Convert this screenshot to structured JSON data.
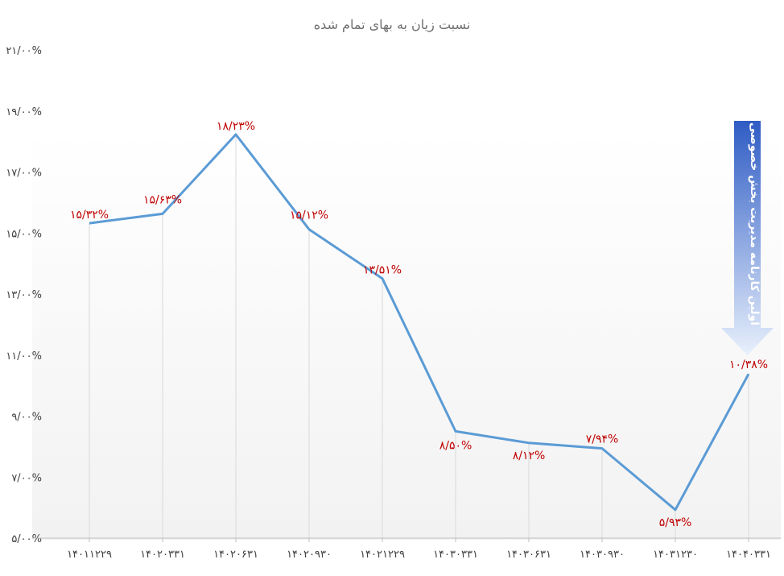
{
  "chart_data": {
    "type": "line",
    "title": "نسبت زیان به بهای تمام شده",
    "categories": [
      "۱۴۰۱۱۲۲۹",
      "۱۴۰۲۰۳۳۱",
      "۱۴۰۲۰۶۳۱",
      "۱۴۰۲۰۹۳۰",
      "۱۴۰۲۱۲۲۹",
      "۱۴۰۳۰۳۳۱",
      "۱۴۰۳۰۶۳۱",
      "۱۴۰۳۰۹۳۰",
      "۱۴۰۳۱۲۳۰",
      "۱۴۰۴۰۳۳۱"
    ],
    "values": [
      15.32,
      15.63,
      18.23,
      15.12,
      13.51,
      8.5,
      8.12,
      7.94,
      5.93,
      10.38
    ],
    "data_labels": [
      "۱۵/۳۲%",
      "۱۵/۶۳%",
      "۱۸/۲۳%",
      "۱۵/۱۲%",
      "۱۳/۵۱%",
      "۸/۵۰%",
      "۸/۱۲%",
      "۷/۹۴%",
      "۵/۹۳%",
      "۱۰/۳۸%"
    ],
    "y_ticks": [
      5,
      7,
      9,
      11,
      13,
      15,
      17,
      19,
      21
    ],
    "y_tick_labels": [
      "۵/۰۰%",
      "۷/۰۰%",
      "۹/۰۰%",
      "۱۱/۰۰%",
      "۱۳/۰۰%",
      "۱۵/۰۰%",
      "۱۷/۰۰%",
      "۱۹/۰۰%",
      "۲۱/۰۰%"
    ],
    "ylim": [
      5,
      21
    ],
    "xlabel": "",
    "ylabel": "",
    "grid": "vertical drop lines",
    "legend": "none",
    "line_color": "#5b9bd5",
    "label_color": "#c00000",
    "annotation": {
      "text": "اولین کارنامه مدیریت بخش خصوصی",
      "points_to": "۱۴۰۴۰۳۳۱",
      "color_top": "#2f5cc4",
      "color_bottom": "#e8f0fc"
    }
  }
}
